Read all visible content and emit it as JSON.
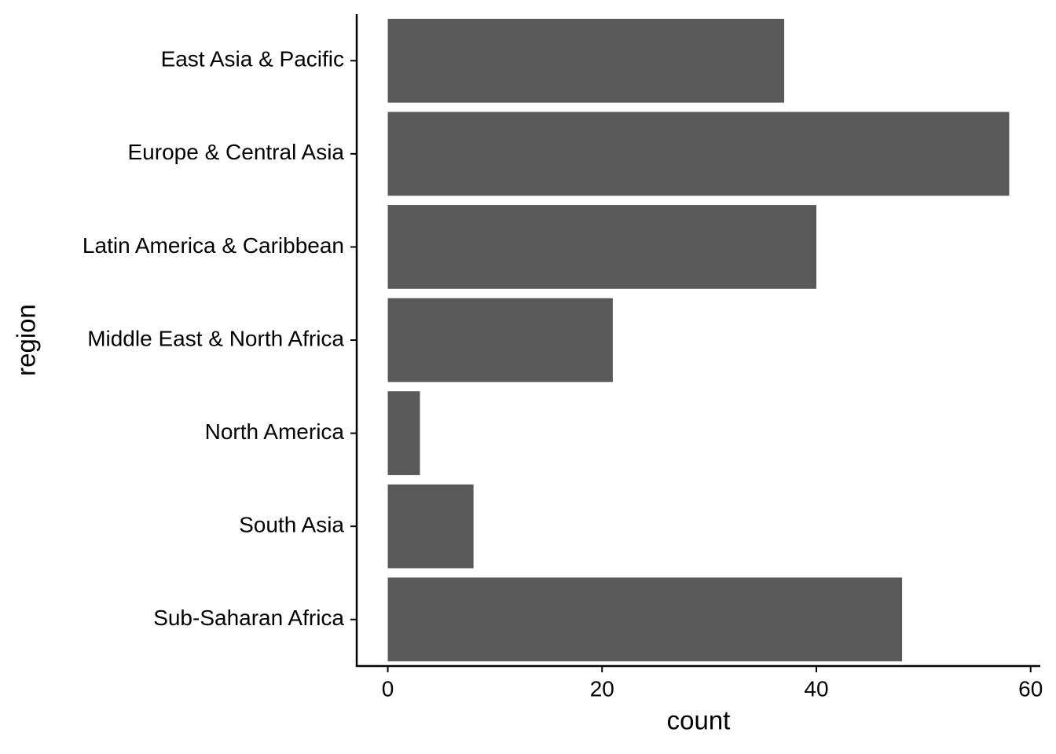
{
  "chart_data": {
    "type": "bar",
    "orientation": "horizontal",
    "x_label": "count",
    "y_label": "region",
    "categories": [
      "East Asia & Pacific",
      "Europe & Central Asia",
      "Latin America & Caribbean",
      "Middle East & North Africa",
      "North America",
      "South Asia",
      "Sub-Saharan Africa"
    ],
    "values": [
      37,
      58,
      40,
      21,
      3,
      8,
      48
    ],
    "color": "#595959",
    "xlim": [
      -2.9,
      60.9
    ],
    "xticks": [
      0,
      20,
      40,
      60
    ],
    "grid": false
  }
}
